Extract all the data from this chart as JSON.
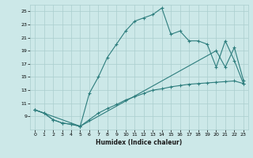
{
  "bg_color": "#cce8e8",
  "grid_color": "#aacece",
  "line_color": "#2d7d7d",
  "xlabel": "Humidex (Indice chaleur)",
  "xlim": [
    -0.5,
    23.5
  ],
  "ylim": [
    7,
    26
  ],
  "yticks": [
    9,
    11,
    13,
    15,
    17,
    19,
    21,
    23,
    25
  ],
  "xticks": [
    0,
    1,
    2,
    3,
    4,
    5,
    6,
    7,
    8,
    9,
    10,
    11,
    12,
    13,
    14,
    15,
    16,
    17,
    18,
    19,
    20,
    21,
    22,
    23
  ],
  "line1_x": [
    0,
    1,
    2,
    3,
    4,
    5,
    6,
    7,
    8,
    9,
    10,
    11,
    12,
    13,
    14,
    15,
    16,
    17,
    18,
    19,
    20,
    21,
    22,
    23
  ],
  "line1_y": [
    10,
    9.5,
    8.5,
    8,
    7.8,
    7.5,
    8.5,
    9.5,
    10.2,
    10.8,
    11.5,
    12,
    12.5,
    13,
    13.2,
    13.5,
    13.7,
    13.9,
    14.0,
    14.1,
    14.2,
    14.3,
    14.4,
    14.0
  ],
  "line2_x": [
    0,
    5,
    20,
    21,
    22,
    23
  ],
  "line2_y": [
    10,
    7.5,
    19.0,
    16.5,
    19.5,
    14.5
  ],
  "line3_x": [
    0,
    1,
    2,
    3,
    4,
    5,
    6,
    7,
    8,
    9,
    10,
    11,
    12,
    13,
    14,
    15,
    16,
    17,
    18,
    19,
    20,
    21,
    22,
    23
  ],
  "line3_y": [
    10,
    9.5,
    8.5,
    8,
    7.8,
    7.5,
    12.5,
    15,
    18,
    20,
    22,
    23.5,
    24,
    24.5,
    25.5,
    21.5,
    22,
    20.5,
    20.5,
    20,
    16.5,
    20.5,
    17.5,
    14
  ]
}
